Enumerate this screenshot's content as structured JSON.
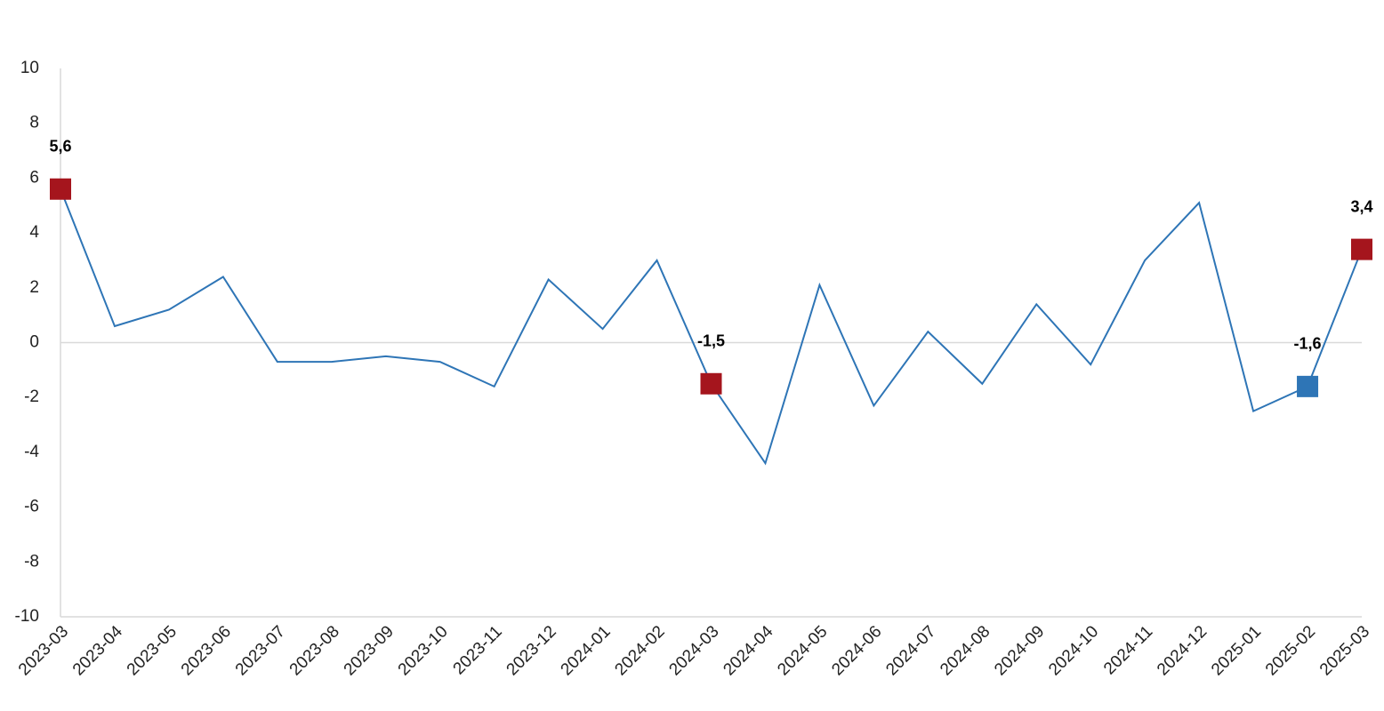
{
  "chart_data": {
    "type": "line",
    "categories": [
      "2023-03",
      "2023-04",
      "2023-05",
      "2023-06",
      "2023-07",
      "2023-08",
      "2023-09",
      "2023-10",
      "2023-11",
      "2023-12",
      "2024-01",
      "2024-02",
      "2024-03",
      "2024-04",
      "2024-05",
      "2024-06",
      "2024-07",
      "2024-08",
      "2024-09",
      "2024-10",
      "2024-11",
      "2024-12",
      "2025-01",
      "2025-02",
      "2025-03"
    ],
    "series": [
      {
        "color": "#2e75b6",
        "values": [
          5.6,
          0.6,
          1.2,
          2.4,
          -0.7,
          -0.7,
          -0.5,
          -0.7,
          -1.6,
          2.3,
          0.5,
          3.0,
          -1.5,
          -4.4,
          2.1,
          -2.3,
          0.4,
          -1.5,
          1.4,
          -0.8,
          3.0,
          5.1,
          -2.5,
          -1.6,
          3.4
        ],
        "value_labels": [
          "5,6",
          null,
          null,
          null,
          null,
          null,
          null,
          null,
          null,
          null,
          null,
          null,
          "-1,5",
          null,
          null,
          null,
          null,
          null,
          null,
          null,
          null,
          null,
          null,
          "-1,6",
          "3,4"
        ],
        "marker_colors": [
          "#a5151d",
          null,
          null,
          null,
          null,
          null,
          null,
          null,
          null,
          null,
          null,
          null,
          "#a5151d",
          null,
          null,
          null,
          null,
          null,
          null,
          null,
          null,
          null,
          null,
          "#2e75b6",
          "#a5151d"
        ]
      }
    ],
    "ylim": [
      -10,
      10
    ],
    "yticks": [
      -10,
      -8,
      -6,
      -4,
      -2,
      0,
      2,
      4,
      6,
      8,
      10
    ],
    "grid": false
  }
}
